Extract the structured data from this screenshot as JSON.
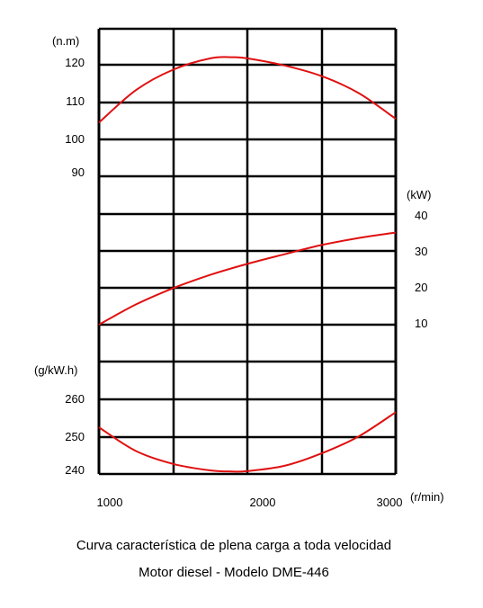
{
  "chart_data": {
    "type": "line",
    "title": "Curva característica de plena carga a toda velocidad",
    "subtitle": "Motor diesel - Modelo DME-446",
    "x_axis": {
      "unit": "(r/min)",
      "range": [
        1000,
        3000
      ],
      "ticks": [
        1000,
        2000,
        3000
      ]
    },
    "grid": true,
    "panels": [
      {
        "name": "torque",
        "unit": "(n.m)",
        "axis_side": "left",
        "ticks": [
          90,
          100,
          110,
          120
        ],
        "x": [
          1000,
          1250,
          1500,
          1750,
          1900,
          2000,
          2250,
          2500,
          2750,
          3000
        ],
        "y": [
          104.7,
          113.3,
          118.7,
          121.7,
          122,
          121.7,
          119.8,
          117,
          112.5,
          105.7
        ]
      },
      {
        "name": "power",
        "unit": "(kW)",
        "axis_side": "right",
        "ticks": [
          10,
          20,
          30,
          40
        ],
        "x": [
          1000,
          1250,
          1500,
          1750,
          2000,
          2250,
          2500,
          2750,
          3000
        ],
        "y": [
          10,
          15.5,
          19.9,
          23.5,
          26.5,
          29.1,
          31.6,
          33.5,
          35
        ]
      },
      {
        "name": "consumption",
        "unit": "(g/kW.h)",
        "axis_side": "left",
        "ticks": [
          240,
          250,
          260
        ],
        "x": [
          1000,
          1250,
          1500,
          1750,
          1900,
          2000,
          2250,
          2500,
          2750,
          3000
        ],
        "y": [
          252.6,
          246.3,
          242.9,
          241.2,
          240.9,
          241,
          242.4,
          245.7,
          250.2,
          256.6
        ]
      }
    ]
  }
}
